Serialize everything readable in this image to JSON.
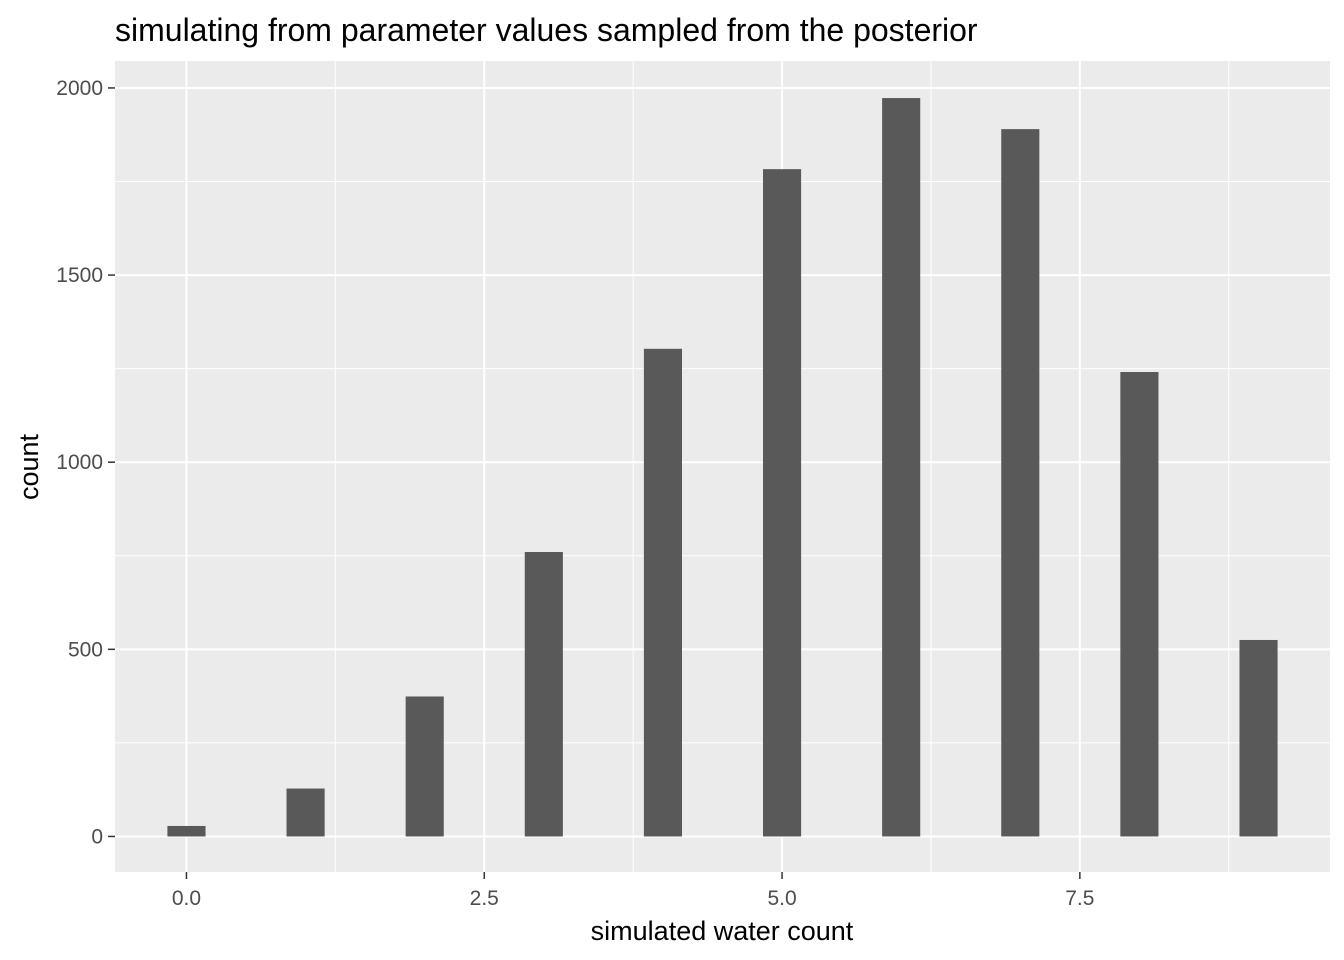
{
  "chart_data": {
    "type": "bar",
    "title": "simulating from parameter values sampled from the posterior",
    "xlabel": "simulated water count",
    "ylabel": "count",
    "x": [
      0,
      1,
      2,
      3,
      4,
      5,
      6,
      7,
      8,
      9
    ],
    "values": [
      28,
      128,
      374,
      760,
      1303,
      1783,
      1973,
      1890,
      1241,
      525
    ],
    "xlim": [
      -0.6,
      9.6
    ],
    "ylim": [
      -95,
      2072
    ],
    "x_ticks": [
      0,
      2.5,
      5,
      7.5
    ],
    "x_tick_labels": [
      "0.0",
      "2.5",
      "5.0",
      "7.5"
    ],
    "y_ticks": [
      0,
      500,
      1000,
      1500,
      2000
    ],
    "y_tick_labels": [
      "0",
      "500",
      "1000",
      "1500",
      "2000"
    ],
    "grid": true,
    "panel_background": "#EBEBEB",
    "grid_color": "#FFFFFF",
    "bar_color": "#595959"
  }
}
